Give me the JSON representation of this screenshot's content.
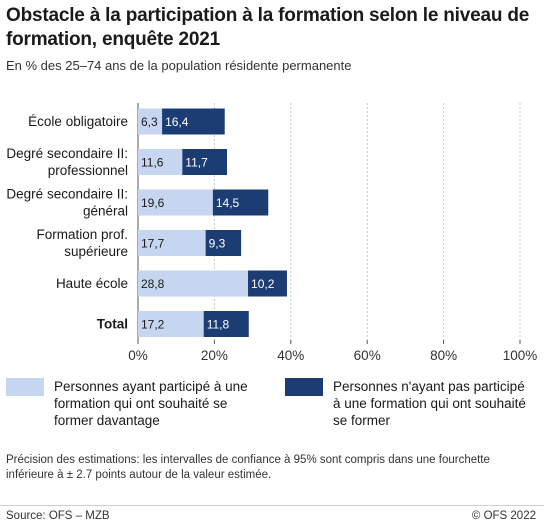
{
  "header": {
    "title": "Obstacle à la participation à la formation selon le niveau de formation, enquête 2021",
    "subtitle": "En % des 25–74 ans de la population résidente permanente"
  },
  "legend": {
    "series0": "Personnes ayant participé à une formation qui ont souhaité se former davantage",
    "series1": "Personnes n'ayant pas participé à une formation qui ont souhaité se former"
  },
  "footnote": "Précision des estimations: les intervalles de confiance à 95% sont compris dans une fourchette inférieure à ± 2.7 points autour de la valeur estimée.",
  "footer": {
    "source": "Source: OFS – MZB",
    "copyright": "© OFS 2022"
  },
  "colors": {
    "series0": "#c6d6f0",
    "series1": "#1b3d74",
    "grid": "#c8c8c8",
    "axis": "#555555"
  },
  "chart_data": {
    "type": "bar",
    "orientation": "horizontal",
    "stacked": true,
    "categories": [
      [
        "École obligatoire"
      ],
      [
        "Degré secondaire II:",
        "professionnel"
      ],
      [
        "Degré secondaire II:",
        "général"
      ],
      [
        "Formation prof.",
        "supérieure"
      ],
      [
        "Haute école"
      ],
      [
        "Total"
      ]
    ],
    "bold_categories": [
      "Total"
    ],
    "series": [
      {
        "name": "Personnes ayant participé à une formation qui ont souhaité se former davantage",
        "values": [
          6.3,
          11.6,
          19.6,
          17.7,
          28.8,
          17.2
        ],
        "labels": [
          "6,3",
          "11,6",
          "19,6",
          "17,7",
          "28,8",
          "17,2"
        ]
      },
      {
        "name": "Personnes n'ayant pas participé à une formation qui ont souhaité se former",
        "values": [
          16.4,
          11.7,
          14.5,
          9.3,
          10.2,
          11.8
        ],
        "labels": [
          "16,4",
          "11,7",
          "14,5",
          "9,3",
          "10,2",
          "11,8"
        ]
      }
    ],
    "xlim": [
      0,
      100
    ],
    "xticks": [
      0,
      20,
      40,
      60,
      80,
      100
    ],
    "xtick_labels": [
      "0%",
      "20%",
      "40%",
      "60%",
      "80%",
      "100%"
    ],
    "grid": true,
    "legend_position": "bottom"
  }
}
